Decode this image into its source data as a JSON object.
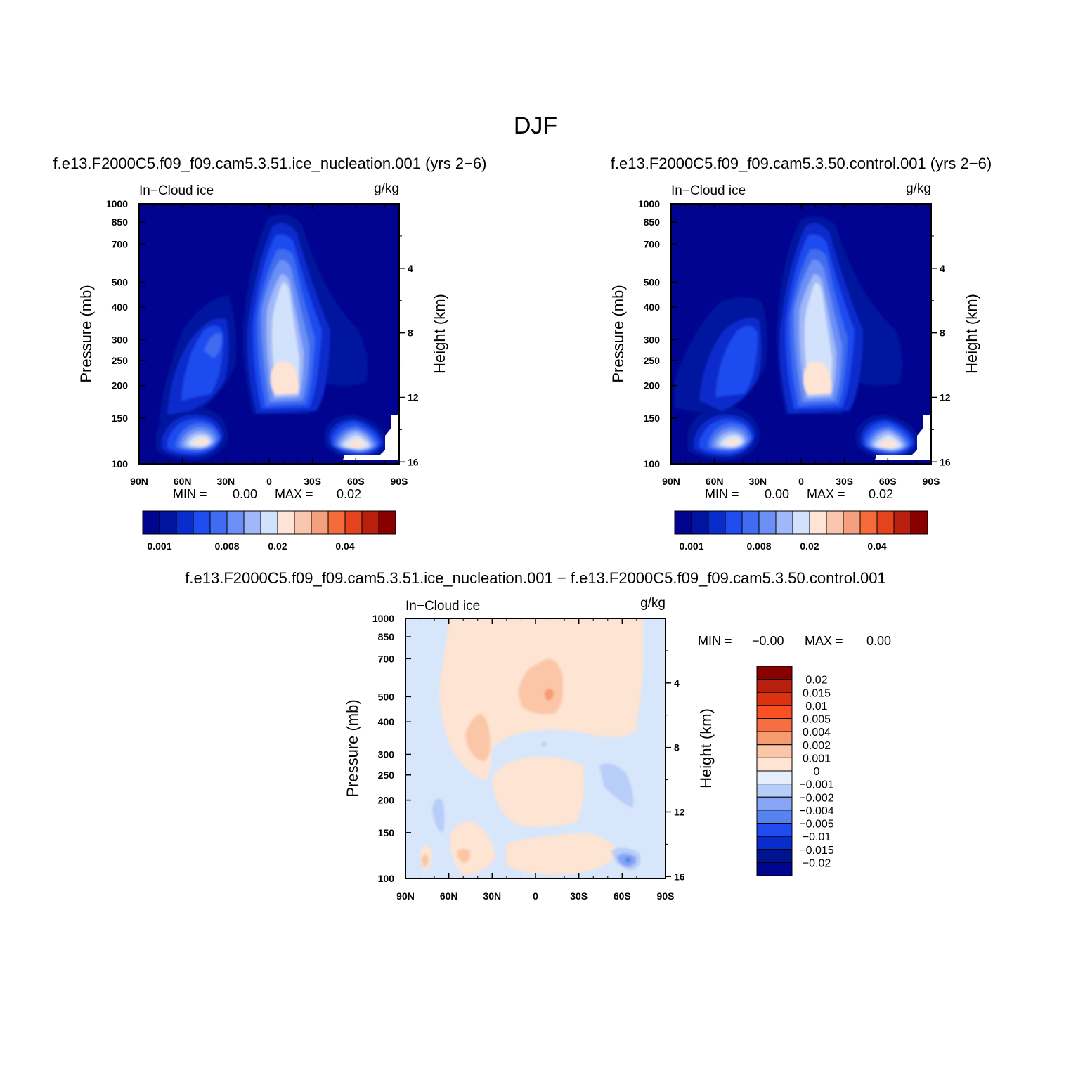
{
  "title": "DJF",
  "panels": [
    {
      "title": "f.e13.F2000C5.f09_f09.cam5.3.51.ice_nucleation.001 (yrs 2−6)",
      "field_label": "In−Cloud ice",
      "units": "g/kg",
      "stats": {
        "min_label": "MIN =",
        "min_value": "0.00",
        "max_label": "MAX =",
        "max_value": "0.02"
      }
    },
    {
      "title": "f.e13.F2000C5.f09_f09.cam5.3.50.control.001 (yrs 2−6)",
      "field_label": "In−Cloud ice",
      "units": "g/kg",
      "stats": {
        "min_label": "MIN =",
        "min_value": "0.00",
        "max_label": "MAX =",
        "max_value": "0.02"
      }
    },
    {
      "title": "f.e13.F2000C5.f09_f09.cam5.3.51.ice_nucleation.001 − f.e13.F2000C5.f09_f09.cam5.3.50.control.001",
      "field_label": "In−Cloud ice",
      "units": "g/kg",
      "stats": {
        "min_label": "MIN =",
        "min_value": "−0.00",
        "max_label": "MAX =",
        "max_value": "0.00"
      }
    }
  ],
  "chart_data": [
    {
      "type": "heatmap",
      "title": "f.e13.F2000C5.f09_f09.cam5.3.51.ice_nucleation.001 (yrs 2−6)",
      "xlabel": "",
      "ylabel": "Pressure (mb)",
      "y2label": "Height (km)",
      "x_ticks": [
        "90N",
        "60N",
        "30N",
        "0",
        "30S",
        "60S",
        "90S"
      ],
      "x_values": [
        90,
        60,
        30,
        0,
        -30,
        -60,
        -90
      ],
      "y_ticks": [
        100,
        150,
        200,
        250,
        300,
        400,
        500,
        700,
        850,
        1000
      ],
      "y2_ticks": [
        4,
        8,
        12,
        16
      ],
      "ylim": [
        1000,
        100
      ],
      "y_scale": "log",
      "colorbar_levels": [
        0.001,
        0.002,
        0.004,
        0.006,
        0.008,
        0.01,
        0.015,
        0.02,
        0.025,
        0.03,
        0.035,
        0.04,
        0.045,
        0.05,
        0.06
      ],
      "colorbar_tick_labels": [
        "0.001",
        "0.008",
        "0.02",
        "0.04"
      ],
      "colorbar_orientation": "horizontal",
      "min": 0.0,
      "max": 0.02
    },
    {
      "type": "heatmap",
      "title": "f.e13.F2000C5.f09_f09.cam5.3.50.control.001 (yrs 2−6)",
      "xlabel": "",
      "ylabel": "Pressure (mb)",
      "y2label": "Height (km)",
      "x_ticks": [
        "90N",
        "60N",
        "30N",
        "0",
        "30S",
        "60S",
        "90S"
      ],
      "x_values": [
        90,
        60,
        30,
        0,
        -30,
        -60,
        -90
      ],
      "y_ticks": [
        100,
        150,
        200,
        250,
        300,
        400,
        500,
        700,
        850,
        1000
      ],
      "y2_ticks": [
        4,
        8,
        12,
        16
      ],
      "ylim": [
        1000,
        100
      ],
      "y_scale": "log",
      "colorbar_levels": [
        0.001,
        0.002,
        0.004,
        0.006,
        0.008,
        0.01,
        0.015,
        0.02,
        0.025,
        0.03,
        0.035,
        0.04,
        0.045,
        0.05,
        0.06
      ],
      "colorbar_tick_labels": [
        "0.001",
        "0.008",
        "0.02",
        "0.04"
      ],
      "colorbar_orientation": "horizontal",
      "min": 0.0,
      "max": 0.02
    },
    {
      "type": "heatmap",
      "title": "f.e13.F2000C5.f09_f09.cam5.3.51.ice_nucleation.001 − f.e13.F2000C5.f09_f09.cam5.3.50.control.001",
      "xlabel": "",
      "ylabel": "Pressure (mb)",
      "y2label": "Height (km)",
      "x_ticks": [
        "90N",
        "60N",
        "30N",
        "0",
        "30S",
        "60S",
        "90S"
      ],
      "x_values": [
        90,
        60,
        30,
        0,
        -30,
        -60,
        -90
      ],
      "y_ticks": [
        100,
        150,
        200,
        250,
        300,
        400,
        500,
        700,
        850,
        1000
      ],
      "y2_ticks": [
        4,
        8,
        12,
        16
      ],
      "ylim": [
        1000,
        100
      ],
      "y_scale": "log",
      "colorbar_labels": [
        "0.02",
        "0.015",
        "0.01",
        "0.005",
        "0.004",
        "0.002",
        "0.001",
        "0",
        "−0.001",
        "−0.002",
        "−0.004",
        "−0.005",
        "−0.01",
        "−0.015",
        "−0.02"
      ],
      "colorbar_orientation": "vertical",
      "min": -0.0,
      "max": 0.0
    }
  ],
  "colors": {
    "sequential": [
      "#00048f",
      "#00149e",
      "#0a2ccc",
      "#1f4bef",
      "#3f6cf0",
      "#6b8ff5",
      "#a0b8f8",
      "#d2e2fc",
      "#fde4d4",
      "#f9c5ac",
      "#f4a07e",
      "#f66b3c",
      "#e5421e",
      "#b81f0c",
      "#890000"
    ],
    "diverging": [
      "#890000",
      "#b81f0c",
      "#dc3210",
      "#fa5024",
      "#f86e43",
      "#f69a70",
      "#fbc6a7",
      "#fde4d3",
      "#e6eefb",
      "#b8cdf8",
      "#86a5f5",
      "#5683f0",
      "#1f4bef",
      "#0a2ccc",
      "#00148f",
      "#00048f"
    ],
    "background_seq": "#00048f",
    "background_diff": "#d7e6fb"
  }
}
